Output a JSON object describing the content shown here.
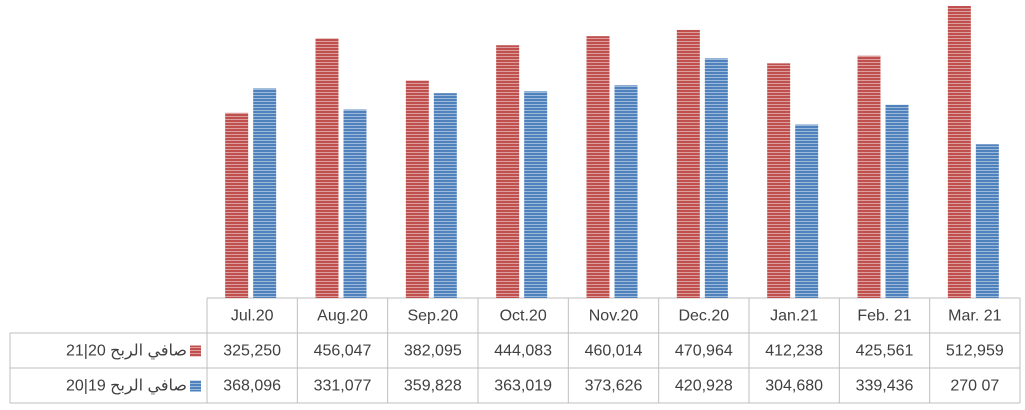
{
  "chart_data": {
    "type": "bar",
    "categories": [
      "Jul.20",
      "Aug.20",
      "Sep.20",
      "Oct.20",
      "Nov.20",
      "Dec.20",
      "Jan.21",
      "Feb. 21",
      "Mar. 21"
    ],
    "series": [
      {
        "name": "صافي الربح 20|21",
        "color": "#c0504d",
        "values": [
          325250,
          456047,
          382095,
          444083,
          460014,
          470964,
          412238,
          425561,
          512959
        ],
        "value_labels": [
          "325,250",
          "456,047",
          "382,095",
          "444,083",
          "460,014",
          "470,964",
          "412,238",
          "425,561",
          "512,959"
        ]
      },
      {
        "name": "صافي الربح 19|20",
        "color": "#4f81bd",
        "values": [
          368096,
          331077,
          359828,
          363019,
          373626,
          420928,
          304680,
          339436,
          270070
        ],
        "value_labels": [
          "368,096",
          "331,077",
          "359,828",
          "363,019",
          "373,626",
          "420,928",
          "304,680",
          "339,436",
          "270 07"
        ]
      }
    ],
    "ylim": [
      0,
      520000
    ]
  }
}
